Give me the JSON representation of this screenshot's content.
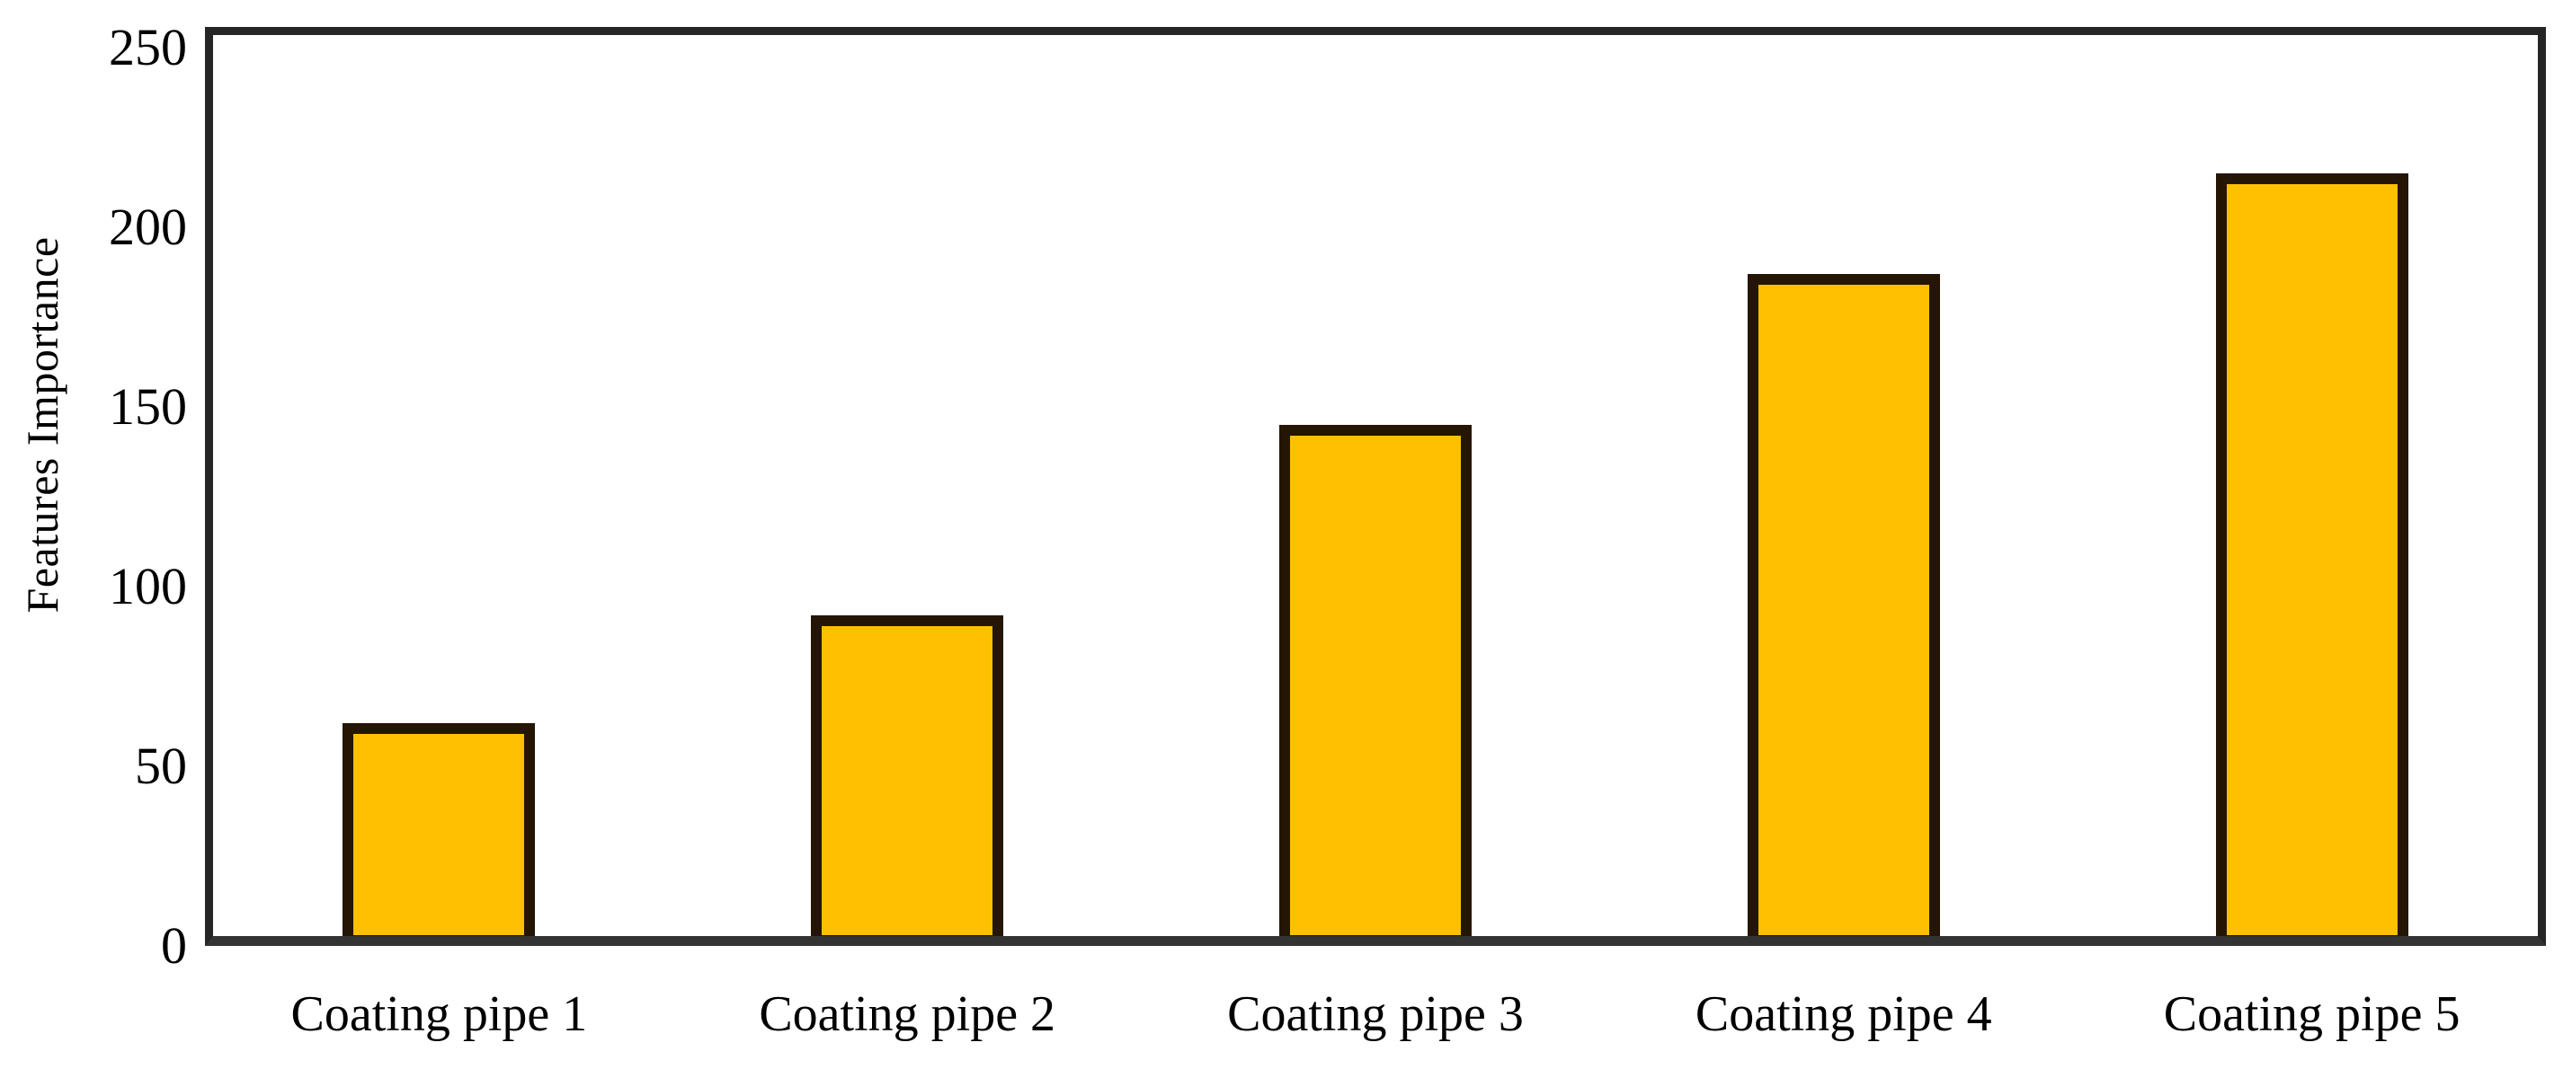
{
  "figure": {
    "background_color": "#ffffff",
    "text_color": "#000000"
  },
  "chart_data": {
    "type": "bar",
    "title": "",
    "xlabel": "",
    "ylabel": "Features Importance",
    "categories": [
      "Coating pipe 1",
      "Coating pipe 2",
      "Coating pipe 3",
      "Coating pipe 4",
      "Coating pipe 5"
    ],
    "values": [
      62,
      92,
      145,
      187,
      215
    ],
    "yticks": [
      0,
      50,
      100,
      150,
      200,
      250
    ],
    "ylim": [
      0,
      255
    ],
    "grid": false,
    "legend": false,
    "bar_fill_color": "#fec001",
    "bar_border_color": "#241505",
    "axis_frame_color": "#262626",
    "axis_line_color": "#333333"
  }
}
